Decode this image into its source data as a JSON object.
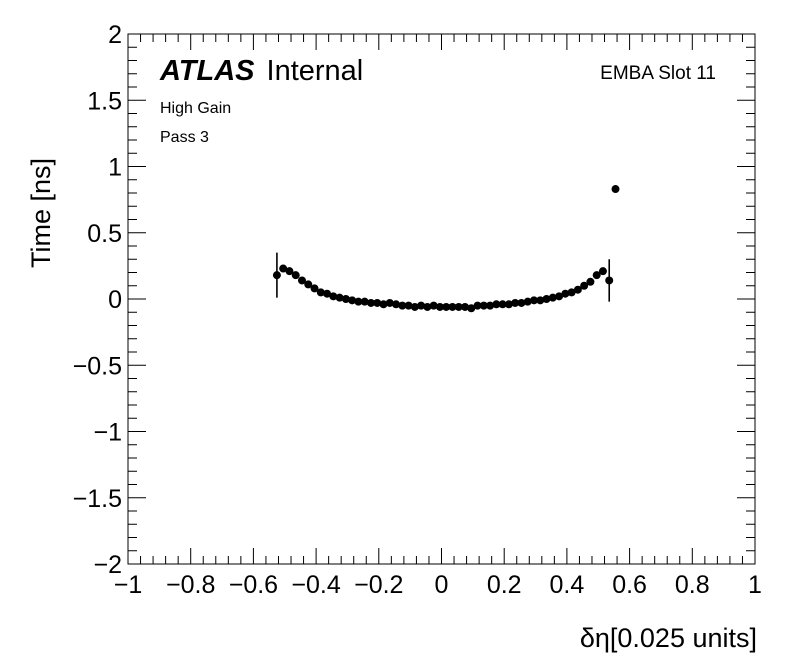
{
  "chart_data": {
    "type": "scatter",
    "title": "",
    "xlabel": "δη[0.025 units]",
    "ylabel": "Time [ns]",
    "xlim": [
      -1,
      1
    ],
    "ylim": [
      -2,
      2
    ],
    "x_tick_labels": [
      "−1",
      "−0.8",
      "−0.6",
      "−0.4",
      "−0.2",
      "0",
      "0.2",
      "0.4",
      "0.6",
      "0.8",
      "1"
    ],
    "y_tick_labels": [
      "−2",
      "−1.5",
      "−1",
      "−0.5",
      "0",
      "0.5",
      "1",
      "1.5",
      "2"
    ],
    "annotations": {
      "atlas": "ATLAS",
      "internal": "Internal",
      "gain": "High Gain",
      "pass": "Pass 3",
      "module": "EMBA Slot 11"
    },
    "grid": false,
    "series": [
      {
        "points": [
          {
            "x": -0.525,
            "y": 0.18,
            "err": 0.17
          },
          {
            "x": -0.505,
            "y": 0.23
          },
          {
            "x": -0.485,
            "y": 0.21
          },
          {
            "x": -0.465,
            "y": 0.18
          },
          {
            "x": -0.445,
            "y": 0.14
          },
          {
            "x": -0.425,
            "y": 0.11
          },
          {
            "x": -0.405,
            "y": 0.08
          },
          {
            "x": -0.385,
            "y": 0.05
          },
          {
            "x": -0.365,
            "y": 0.04
          },
          {
            "x": -0.345,
            "y": 0.02
          },
          {
            "x": -0.325,
            "y": 0.01
          },
          {
            "x": -0.305,
            "y": 0.0
          },
          {
            "x": -0.285,
            "y": -0.01
          },
          {
            "x": -0.265,
            "y": -0.02
          },
          {
            "x": -0.245,
            "y": -0.02
          },
          {
            "x": -0.225,
            "y": -0.03
          },
          {
            "x": -0.205,
            "y": -0.03
          },
          {
            "x": -0.185,
            "y": -0.04
          },
          {
            "x": -0.165,
            "y": -0.03
          },
          {
            "x": -0.145,
            "y": -0.04
          },
          {
            "x": -0.125,
            "y": -0.05
          },
          {
            "x": -0.105,
            "y": -0.05
          },
          {
            "x": -0.085,
            "y": -0.06
          },
          {
            "x": -0.065,
            "y": -0.05
          },
          {
            "x": -0.045,
            "y": -0.06
          },
          {
            "x": -0.025,
            "y": -0.05
          },
          {
            "x": -0.005,
            "y": -0.06
          },
          {
            "x": 0.015,
            "y": -0.06
          },
          {
            "x": 0.035,
            "y": -0.06
          },
          {
            "x": 0.055,
            "y": -0.06
          },
          {
            "x": 0.075,
            "y": -0.06
          },
          {
            "x": 0.095,
            "y": -0.07
          },
          {
            "x": 0.115,
            "y": -0.05
          },
          {
            "x": 0.135,
            "y": -0.05
          },
          {
            "x": 0.155,
            "y": -0.05
          },
          {
            "x": 0.175,
            "y": -0.04
          },
          {
            "x": 0.195,
            "y": -0.04
          },
          {
            "x": 0.215,
            "y": -0.04
          },
          {
            "x": 0.235,
            "y": -0.03
          },
          {
            "x": 0.255,
            "y": -0.03
          },
          {
            "x": 0.275,
            "y": -0.02
          },
          {
            "x": 0.295,
            "y": -0.01
          },
          {
            "x": 0.315,
            "y": -0.01
          },
          {
            "x": 0.335,
            "y": 0.0
          },
          {
            "x": 0.355,
            "y": 0.01
          },
          {
            "x": 0.375,
            "y": 0.02
          },
          {
            "x": 0.395,
            "y": 0.04
          },
          {
            "x": 0.415,
            "y": 0.05
          },
          {
            "x": 0.435,
            "y": 0.07
          },
          {
            "x": 0.455,
            "y": 0.1
          },
          {
            "x": 0.475,
            "y": 0.13
          },
          {
            "x": 0.495,
            "y": 0.18
          },
          {
            "x": 0.515,
            "y": 0.21
          },
          {
            "x": 0.535,
            "y": 0.14,
            "err": 0.16
          },
          {
            "x": 0.555,
            "y": 0.83
          }
        ]
      }
    ]
  }
}
